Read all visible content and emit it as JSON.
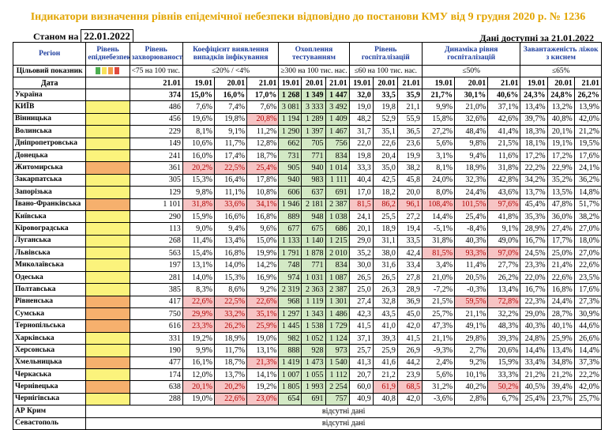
{
  "title": "Індикатори визначення рівнів епідемічної небезпеки відповідно до постанови КМУ від 9 грудня 2020 р. № 1236",
  "as_of_label": "Станом на",
  "as_of_date": "22.01.2022",
  "available_label": "Дані доступні за 21.01.2022",
  "headers": {
    "region": "Регіон",
    "target": "Цільовий показник",
    "date": "Дата",
    "danger_level": "Рівень епіднебезпеки",
    "incidence": "Рівень захворюваності",
    "detection": "Коефіцієнт виявлення випадків інфікування",
    "testing": "Охоплення тестуванням",
    "hospital": "Рівень госпіталізацій",
    "hosp_dynamics": "Динаміка рівня госпіталізацій",
    "beds": "Завантаженість ліжок з киснем"
  },
  "targets": {
    "incidence": "<75 на 100 тис. нас.",
    "detection": "≤20% / <4%",
    "testing": "≥300 на 100 тис. нас.",
    "hospital": "≤60 на 100 тис. нас.",
    "hosp_dynamics": "≤50%",
    "beds": "≤65%"
  },
  "dates": {
    "incidence": [
      "21.01"
    ],
    "detection": [
      "19.01",
      "20.01",
      "21.01"
    ],
    "testing": [
      "19.01",
      "20.01",
      "21.01"
    ],
    "hospital": [
      "19.01",
      "20.01",
      "21.01"
    ],
    "hosp_dynamics": [
      "19.01",
      "20.01",
      "21.01"
    ],
    "beds": [
      "19.01",
      "20.01",
      "21.01"
    ]
  },
  "legend_colors": [
    "#4caf50",
    "#f7e25a",
    "#f39c4a",
    "#e04a3f"
  ],
  "no_data_label": "відсутні дані",
  "rows": [
    {
      "region": "Україна",
      "lev": "",
      "inc": "374",
      "det": [
        "15,0%",
        "16,0%",
        "17,0%"
      ],
      "tst": [
        "1 268",
        "1 349",
        "1 447"
      ],
      "hos": [
        "32,0",
        "33,5",
        "35,9"
      ],
      "dyn": [
        "21,7%",
        "30,1%",
        "40,6%"
      ],
      "bed": [
        "24,3%",
        "24,8%",
        "26,2%"
      ]
    },
    {
      "region": "КИЇВ",
      "lev": "yellow",
      "inc": "486",
      "det": [
        "7,6%",
        "7,4%",
        "7,6%"
      ],
      "tst": [
        "3 081",
        "3 333",
        "3 492"
      ],
      "hos": [
        "19,0",
        "19,8",
        "21,1"
      ],
      "dyn": [
        "9,9%",
        "21,0%",
        "37,1%"
      ],
      "bed": [
        "13,4%",
        "13,2%",
        "13,9%"
      ]
    },
    {
      "region": "Вінницька",
      "lev": "yellow",
      "inc": "456",
      "det": [
        "19,6%",
        "19,8%",
        "20,8%"
      ],
      "tst": [
        "1 194",
        "1 289",
        "1 409"
      ],
      "hos": [
        "48,2",
        "52,9",
        "55,9"
      ],
      "dyn": [
        "15,8%",
        "32,6%",
        "42,6%"
      ],
      "bed": [
        "39,7%",
        "40,8%",
        "42,0%"
      ]
    },
    {
      "region": "Волинська",
      "lev": "yellow",
      "inc": "229",
      "det": [
        "8,1%",
        "9,1%",
        "11,2%"
      ],
      "tst": [
        "1 290",
        "1 397",
        "1 467"
      ],
      "hos": [
        "31,7",
        "35,1",
        "36,5"
      ],
      "dyn": [
        "27,2%",
        "48,4%",
        "41,4%"
      ],
      "bed": [
        "18,3%",
        "20,1%",
        "21,2%"
      ]
    },
    {
      "region": "Дніпропетровська",
      "lev": "yellow",
      "inc": "149",
      "det": [
        "10,6%",
        "11,7%",
        "12,8%"
      ],
      "tst": [
        "662",
        "705",
        "756"
      ],
      "hos": [
        "22,0",
        "22,6",
        "23,6"
      ],
      "dyn": [
        "5,6%",
        "9,8%",
        "21,5%"
      ],
      "bed": [
        "18,1%",
        "19,1%",
        "19,5%"
      ]
    },
    {
      "region": "Донецька",
      "lev": "yellow",
      "inc": "241",
      "det": [
        "16,0%",
        "17,4%",
        "18,7%"
      ],
      "tst": [
        "731",
        "771",
        "834"
      ],
      "hos": [
        "19,8",
        "20,4",
        "19,9"
      ],
      "dyn": [
        "3,1%",
        "9,4%",
        "11,6%"
      ],
      "bed": [
        "17,2%",
        "17,2%",
        "17,6%"
      ]
    },
    {
      "region": "Житомирська",
      "lev": "orange",
      "inc": "361",
      "det": [
        "20,2%",
        "22,5%",
        "25,4%"
      ],
      "tst": [
        "905",
        "940",
        "1 014"
      ],
      "hos": [
        "33,3",
        "35,0",
        "38,2"
      ],
      "dyn": [
        "8,1%",
        "18,9%",
        "31,8%"
      ],
      "bed": [
        "22,2%",
        "22,9%",
        "24,1%"
      ]
    },
    {
      "region": "Закарпатська",
      "lev": "yellow",
      "inc": "305",
      "det": [
        "15,3%",
        "16,4%",
        "17,8%"
      ],
      "tst": [
        "940",
        "983",
        "1 111"
      ],
      "hos": [
        "40,4",
        "42,5",
        "45,8"
      ],
      "dyn": [
        "24,0%",
        "32,3%",
        "42,8%"
      ],
      "bed": [
        "34,2%",
        "35,2%",
        "36,2%"
      ]
    },
    {
      "region": "Запорізька",
      "lev": "yellow",
      "inc": "129",
      "det": [
        "9,8%",
        "11,1%",
        "10,8%"
      ],
      "tst": [
        "606",
        "637",
        "691"
      ],
      "hos": [
        "17,0",
        "18,2",
        "20,0"
      ],
      "dyn": [
        "8,0%",
        "24,4%",
        "43,6%"
      ],
      "bed": [
        "13,7%",
        "13,5%",
        "14,8%"
      ]
    },
    {
      "region": "Івано-Франківська",
      "lev": "orange",
      "inc": "1 101",
      "det": [
        "31,8%",
        "33,6%",
        "34,1%"
      ],
      "tst": [
        "1 946",
        "2 181",
        "2 387"
      ],
      "hos": [
        "81,5",
        "86,2",
        "96,1"
      ],
      "dyn": [
        "108,4%",
        "101,5%",
        "97,6%"
      ],
      "bed": [
        "45,4%",
        "47,8%",
        "51,7%"
      ]
    },
    {
      "region": "Київська",
      "lev": "yellow",
      "inc": "290",
      "det": [
        "15,9%",
        "16,6%",
        "16,8%"
      ],
      "tst": [
        "889",
        "948",
        "1 038"
      ],
      "hos": [
        "24,1",
        "25,5",
        "27,2"
      ],
      "dyn": [
        "14,4%",
        "25,4%",
        "41,8%"
      ],
      "bed": [
        "35,3%",
        "36,0%",
        "38,2%"
      ]
    },
    {
      "region": "Кіровоградська",
      "lev": "yellow",
      "inc": "113",
      "det": [
        "9,0%",
        "9,4%",
        "9,6%"
      ],
      "tst": [
        "677",
        "675",
        "686"
      ],
      "hos": [
        "20,1",
        "18,9",
        "19,4"
      ],
      "dyn": [
        "-5,1%",
        "-8,4%",
        "9,1%"
      ],
      "bed": [
        "28,9%",
        "27,4%",
        "27,0%"
      ]
    },
    {
      "region": "Луганська",
      "lev": "yellow",
      "inc": "268",
      "det": [
        "11,4%",
        "13,4%",
        "15,0%"
      ],
      "tst": [
        "1 133",
        "1 140",
        "1 215"
      ],
      "hos": [
        "29,0",
        "31,1",
        "33,5"
      ],
      "dyn": [
        "31,8%",
        "40,3%",
        "49,0%"
      ],
      "bed": [
        "16,7%",
        "17,7%",
        "18,0%"
      ]
    },
    {
      "region": "Львівська",
      "lev": "yellow",
      "inc": "563",
      "det": [
        "15,4%",
        "16,8%",
        "19,9%"
      ],
      "tst": [
        "1 791",
        "1 878",
        "2 010"
      ],
      "hos": [
        "35,2",
        "38,0",
        "42,4"
      ],
      "dyn": [
        "81,5%",
        "93,3%",
        "97,0%"
      ],
      "bed": [
        "24,5%",
        "25,0%",
        "27,0%"
      ]
    },
    {
      "region": "Миколаївська",
      "lev": "yellow",
      "inc": "197",
      "det": [
        "13,1%",
        "14,0%",
        "14,2%"
      ],
      "tst": [
        "748",
        "771",
        "834"
      ],
      "hos": [
        "30,0",
        "31,6",
        "33,4"
      ],
      "dyn": [
        "3,4%",
        "11,4%",
        "27,7%"
      ],
      "bed": [
        "23,3%",
        "21,4%",
        "22,6%"
      ]
    },
    {
      "region": "Одеська",
      "lev": "yellow",
      "inc": "281",
      "det": [
        "14,0%",
        "15,3%",
        "16,9%"
      ],
      "tst": [
        "974",
        "1 031",
        "1 087"
      ],
      "hos": [
        "26,5",
        "26,5",
        "27,8"
      ],
      "dyn": [
        "21,0%",
        "20,5%",
        "26,2%"
      ],
      "bed": [
        "22,0%",
        "22,6%",
        "23,5%"
      ]
    },
    {
      "region": "Полтавська",
      "lev": "yellow",
      "inc": "385",
      "det": [
        "8,3%",
        "8,6%",
        "9,2%"
      ],
      "tst": [
        "2 319",
        "2 363",
        "2 387"
      ],
      "hos": [
        "25,0",
        "26,3",
        "28,9"
      ],
      "dyn": [
        "-7,2%",
        "-0,3%",
        "13,4%"
      ],
      "bed": [
        "16,7%",
        "16,8%",
        "17,6%"
      ]
    },
    {
      "region": "Рівненська",
      "lev": "orange",
      "inc": "417",
      "det": [
        "22,6%",
        "22,5%",
        "22,6%"
      ],
      "tst": [
        "968",
        "1 119",
        "1 301"
      ],
      "hos": [
        "27,4",
        "32,8",
        "36,9"
      ],
      "dyn": [
        "21,5%",
        "59,5%",
        "72,8%"
      ],
      "bed": [
        "22,3%",
        "24,4%",
        "27,3%"
      ]
    },
    {
      "region": "Сумська",
      "lev": "orange",
      "inc": "750",
      "det": [
        "29,9%",
        "33,2%",
        "35,1%"
      ],
      "tst": [
        "1 297",
        "1 343",
        "1 486"
      ],
      "hos": [
        "42,3",
        "43,5",
        "45,0"
      ],
      "dyn": [
        "25,7%",
        "21,1%",
        "32,2%"
      ],
      "bed": [
        "29,0%",
        "28,7%",
        "30,9%"
      ]
    },
    {
      "region": "Тернопільська",
      "lev": "orange",
      "inc": "616",
      "det": [
        "23,3%",
        "26,2%",
        "25,9%"
      ],
      "tst": [
        "1 445",
        "1 538",
        "1 729"
      ],
      "hos": [
        "41,5",
        "41,0",
        "42,0"
      ],
      "dyn": [
        "47,3%",
        "49,1%",
        "48,3%"
      ],
      "bed": [
        "40,3%",
        "40,1%",
        "44,6%"
      ]
    },
    {
      "region": "Харківська",
      "lev": "yellow",
      "inc": "331",
      "det": [
        "19,2%",
        "18,9%",
        "19,0%"
      ],
      "tst": [
        "982",
        "1 052",
        "1 124"
      ],
      "hos": [
        "37,1",
        "39,3",
        "41,5"
      ],
      "dyn": [
        "21,1%",
        "29,8%",
        "39,3%"
      ],
      "bed": [
        "24,8%",
        "25,9%",
        "26,6%"
      ]
    },
    {
      "region": "Херсонська",
      "lev": "yellow",
      "inc": "190",
      "det": [
        "9,9%",
        "11,7%",
        "13,1%"
      ],
      "tst": [
        "888",
        "928",
        "973"
      ],
      "hos": [
        "25,7",
        "25,9",
        "26,9"
      ],
      "dyn": [
        "-9,3%",
        "2,7%",
        "20,6%"
      ],
      "bed": [
        "14,4%",
        "13,4%",
        "14,4%"
      ]
    },
    {
      "region": "Хмельницька",
      "lev": "orange",
      "inc": "477",
      "det": [
        "16,1%",
        "18,7%",
        "21,3%"
      ],
      "tst": [
        "1 419",
        "1 473",
        "1 540"
      ],
      "hos": [
        "41,3",
        "41,6",
        "44,2"
      ],
      "dyn": [
        "2,4%",
        "9,2%",
        "15,9%"
      ],
      "bed": [
        "33,4%",
        "34,8%",
        "37,3%"
      ]
    },
    {
      "region": "Черкаська",
      "lev": "yellow",
      "inc": "174",
      "det": [
        "12,0%",
        "13,7%",
        "14,1%"
      ],
      "tst": [
        "1 007",
        "1 055",
        "1 112"
      ],
      "hos": [
        "20,7",
        "21,2",
        "23,9"
      ],
      "dyn": [
        "5,6%",
        "10,1%",
        "33,3%"
      ],
      "bed": [
        "21,2%",
        "21,2%",
        "22,2%"
      ]
    },
    {
      "region": "Чернівецька",
      "lev": "orange",
      "inc": "638",
      "det": [
        "20,1%",
        "20,2%",
        "19,2%"
      ],
      "tst": [
        "1 805",
        "1 993",
        "2 254"
      ],
      "hos": [
        "60,0",
        "61,9",
        "68,5"
      ],
      "dyn": [
        "31,2%",
        "40,2%",
        "50,2%"
      ],
      "bed": [
        "40,5%",
        "39,4%",
        "42,0%"
      ]
    },
    {
      "region": "Чернігівська",
      "lev": "yellow",
      "inc": "288",
      "det": [
        "19,0%",
        "22,6%",
        "23,0%"
      ],
      "tst": [
        "654",
        "691",
        "757"
      ],
      "hos": [
        "40,9",
        "40,8",
        "42,0"
      ],
      "dyn": [
        "-3,6%",
        "2,8%",
        "6,7%"
      ],
      "bed": [
        "25,4%",
        "23,7%",
        "25,7%"
      ]
    }
  ],
  "missing_rows": [
    "АР Крим",
    "Севастополь"
  ]
}
